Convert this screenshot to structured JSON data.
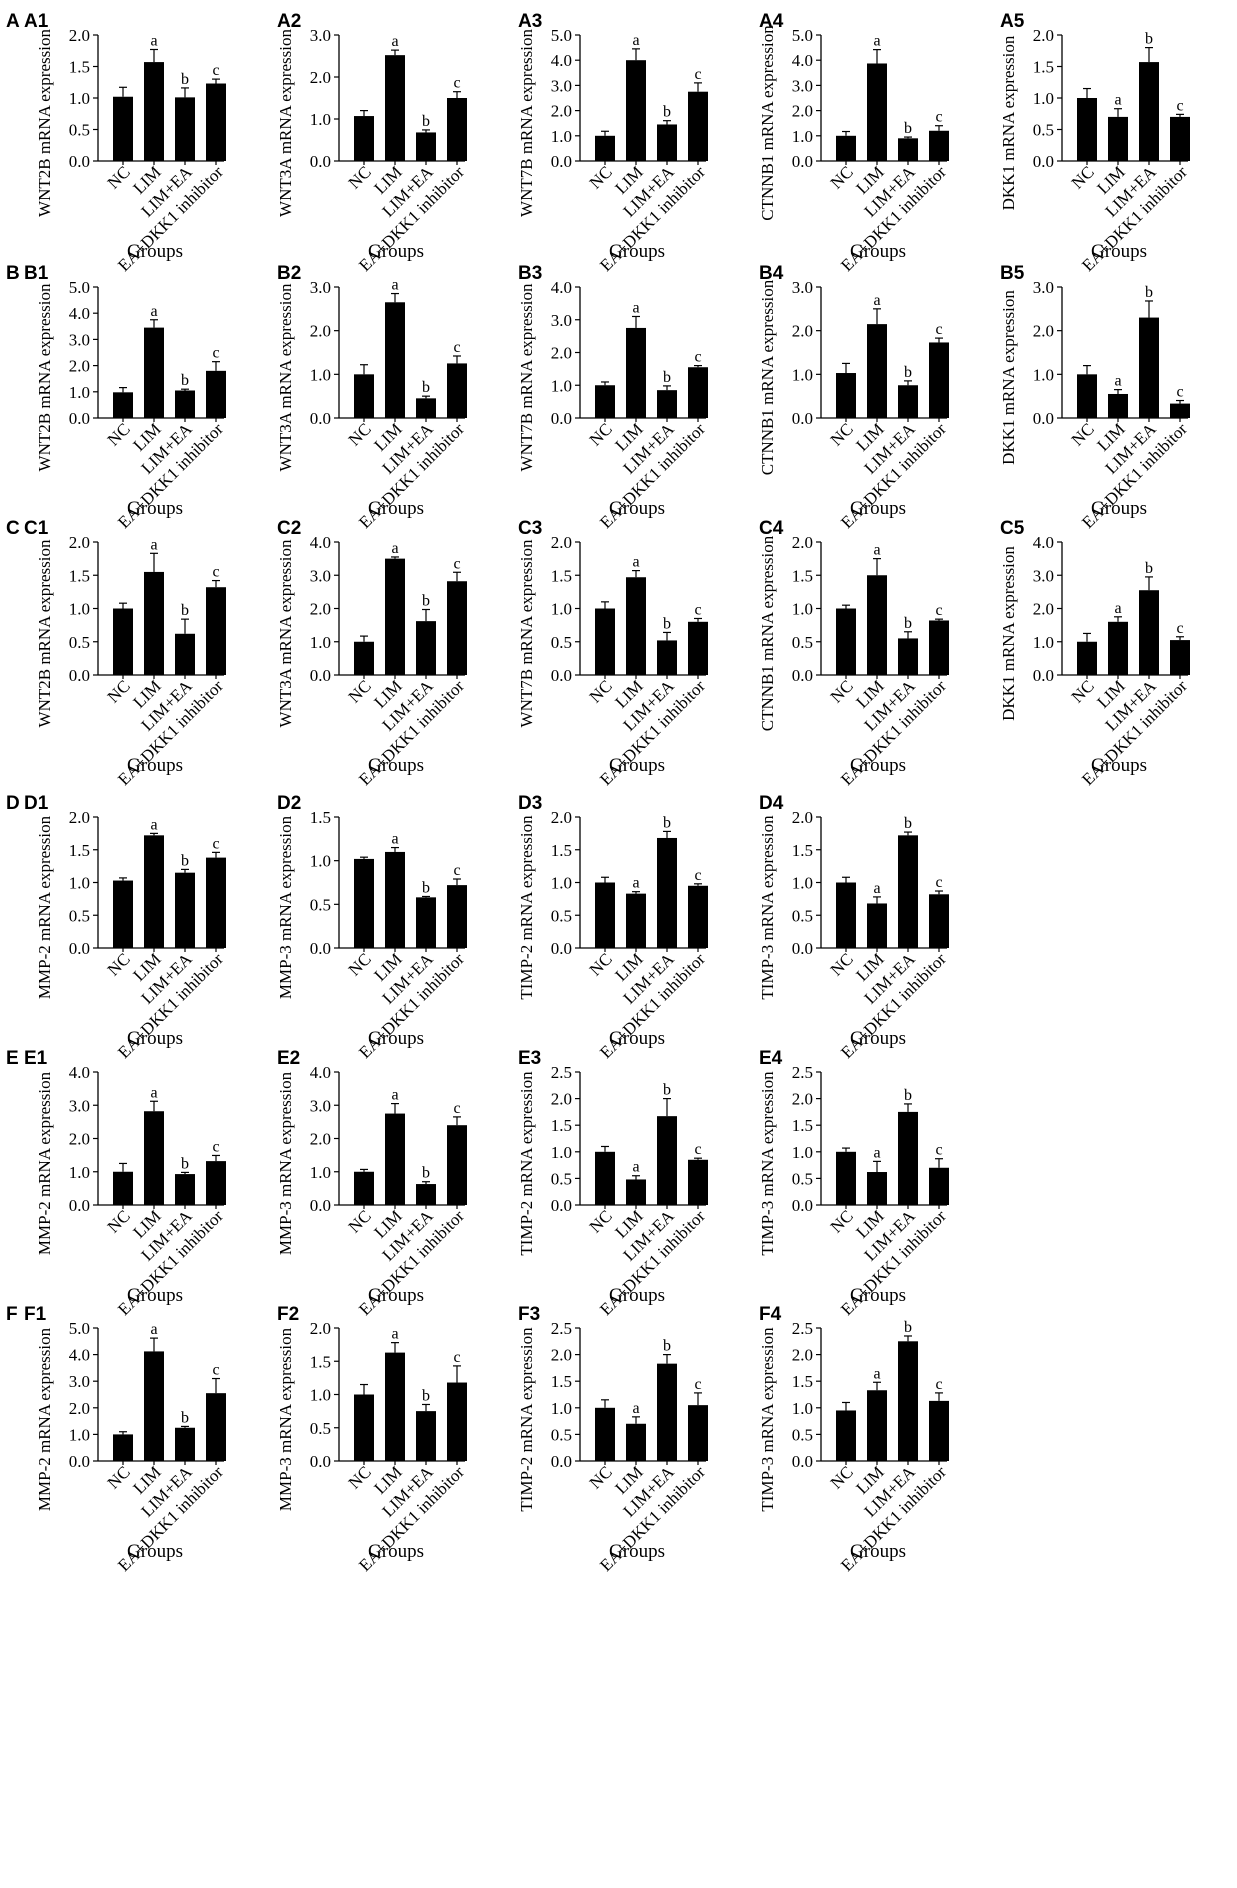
{
  "chart_data": [
    {
      "type": "bar",
      "row_label": "A",
      "panel": "A1",
      "ylabel": "WNT2B mRNA expression",
      "xlabel": "Groups",
      "categories": [
        "NC",
        "LIM",
        "LIM+EA",
        "EA+DKK1 inhibitor"
      ],
      "values": [
        1.02,
        1.57,
        1.01,
        1.23
      ],
      "errors": [
        0.15,
        0.2,
        0.15,
        0.07
      ],
      "letters": [
        "",
        "a",
        "b",
        "c"
      ],
      "ylim": [
        0,
        2
      ],
      "yticks": [
        "0.0",
        "0.5",
        "1.0",
        "1.5",
        "2.0"
      ]
    },
    {
      "type": "bar",
      "panel": "A2",
      "ylabel": "WNT3A mRNA expression",
      "xlabel": "Groups",
      "categories": [
        "NC",
        "LIM",
        "LIM+EA",
        "EA+DKK1 inhibitor"
      ],
      "values": [
        1.07,
        2.52,
        0.68,
        1.5
      ],
      "errors": [
        0.13,
        0.12,
        0.06,
        0.15
      ],
      "letters": [
        "",
        "a",
        "b",
        "c"
      ],
      "ylim": [
        0,
        3
      ],
      "yticks": [
        "0.0",
        "1.0",
        "2.0",
        "3.0"
      ]
    },
    {
      "type": "bar",
      "panel": "A3",
      "ylabel": "WNT7B mRNA expression",
      "xlabel": "Groups",
      "categories": [
        "NC",
        "LIM",
        "LIM+EA",
        "EA+DKK1 inhibitor"
      ],
      "values": [
        1.0,
        4.0,
        1.45,
        2.75
      ],
      "errors": [
        0.18,
        0.45,
        0.15,
        0.35
      ],
      "letters": [
        "",
        "a",
        "b",
        "c"
      ],
      "ylim": [
        0,
        5
      ],
      "yticks": [
        "0.0",
        "1.0",
        "2.0",
        "3.0",
        "4.0",
        "5.0"
      ]
    },
    {
      "type": "bar",
      "panel": "A4",
      "ylabel": "CTNNB1 mRNA expression",
      "xlabel": "Groups",
      "categories": [
        "NC",
        "LIM",
        "LIM+EA",
        "EA+DKK1 inhibitor"
      ],
      "values": [
        1.0,
        3.87,
        0.9,
        1.2
      ],
      "errors": [
        0.17,
        0.55,
        0.05,
        0.2
      ],
      "letters": [
        "",
        "a",
        "b",
        "c"
      ],
      "ylim": [
        0,
        5
      ],
      "yticks": [
        "0.0",
        "1.0",
        "2.0",
        "3.0",
        "4.0",
        "5.0"
      ]
    },
    {
      "type": "bar",
      "panel": "A5",
      "ylabel": "DKK1 mRNA expression",
      "xlabel": "Groups",
      "categories": [
        "NC",
        "LIM",
        "LIM+EA",
        "EA+DKK1 inhibitor"
      ],
      "values": [
        1.0,
        0.7,
        1.57,
        0.7
      ],
      "errors": [
        0.15,
        0.13,
        0.23,
        0.04
      ],
      "letters": [
        "",
        "a",
        "b",
        "c"
      ],
      "ylim": [
        0,
        2
      ],
      "yticks": [
        "0.0",
        "0.5",
        "1.0",
        "1.5",
        "2.0"
      ]
    },
    {
      "type": "bar",
      "row_label": "B",
      "panel": "B1",
      "ylabel": "WNT2B mRNA expression",
      "xlabel": "Groups",
      "categories": [
        "NC",
        "LIM",
        "LIM+EA",
        "EA+DKK1 inhibitor"
      ],
      "values": [
        0.98,
        3.45,
        1.05,
        1.8
      ],
      "errors": [
        0.18,
        0.3,
        0.05,
        0.35
      ],
      "letters": [
        "",
        "a",
        "b",
        "c"
      ],
      "ylim": [
        0,
        5
      ],
      "yticks": [
        "0.0",
        "1.0",
        "2.0",
        "3.0",
        "4.0",
        "5.0"
      ]
    },
    {
      "type": "bar",
      "panel": "B2",
      "ylabel": "WNT3A mRNA expression",
      "xlabel": "Groups",
      "categories": [
        "NC",
        "LIM",
        "LIM+EA",
        "EA+DKK1 inhibitor"
      ],
      "values": [
        1.0,
        2.65,
        0.45,
        1.25
      ],
      "errors": [
        0.22,
        0.2,
        0.05,
        0.17
      ],
      "letters": [
        "",
        "a",
        "b",
        "c"
      ],
      "ylim": [
        0,
        3
      ],
      "yticks": [
        "0.0",
        "1.0",
        "2.0",
        "3.0"
      ]
    },
    {
      "type": "bar",
      "panel": "B3",
      "ylabel": "WNT7B mRNA expression",
      "xlabel": "Groups",
      "categories": [
        "NC",
        "LIM",
        "LIM+EA",
        "EA+DKK1 inhibitor"
      ],
      "values": [
        1.0,
        2.75,
        0.85,
        1.55
      ],
      "errors": [
        0.1,
        0.35,
        0.13,
        0.05
      ],
      "letters": [
        "",
        "a",
        "b",
        "c"
      ],
      "ylim": [
        0,
        4
      ],
      "yticks": [
        "0.0",
        "1.0",
        "2.0",
        "3.0",
        "4.0"
      ]
    },
    {
      "type": "bar",
      "panel": "B4",
      "ylabel": "CTNNB1 mRNA expression",
      "xlabel": "Groups",
      "categories": [
        "NC",
        "LIM",
        "LIM+EA",
        "EA+DKK1 inhibitor"
      ],
      "values": [
        1.03,
        2.15,
        0.75,
        1.73
      ],
      "errors": [
        0.22,
        0.35,
        0.1,
        0.1
      ],
      "letters": [
        "",
        "a",
        "b",
        "c"
      ],
      "ylim": [
        0,
        3
      ],
      "yticks": [
        "0.0",
        "1.0",
        "2.0",
        "3.0"
      ]
    },
    {
      "type": "bar",
      "panel": "B5",
      "ylabel": "DKK1 mRNA expression",
      "xlabel": "Groups",
      "categories": [
        "NC",
        "LIM",
        "LIM+EA",
        "EA+DKK1 inhibitor"
      ],
      "values": [
        1.0,
        0.55,
        2.3,
        0.33
      ],
      "errors": [
        0.2,
        0.1,
        0.38,
        0.07
      ],
      "letters": [
        "",
        "a",
        "b",
        "c"
      ],
      "ylim": [
        0,
        3
      ],
      "yticks": [
        "0.0",
        "1.0",
        "2.0",
        "3.0"
      ]
    },
    {
      "type": "bar",
      "row_label": "C",
      "panel": "C1",
      "ylabel": "WNT2B mRNA expression",
      "xlabel": "Groups",
      "categories": [
        "NC",
        "LIM",
        "LIM+EA",
        "EA+DKK1 inhibitor"
      ],
      "values": [
        1.0,
        1.55,
        0.62,
        1.32
      ],
      "errors": [
        0.08,
        0.28,
        0.22,
        0.1
      ],
      "letters": [
        "",
        "a",
        "b",
        "c"
      ],
      "ylim": [
        0,
        2
      ],
      "yticks": [
        "0.0",
        "0.5",
        "1.0",
        "1.5",
        "2.0"
      ]
    },
    {
      "type": "bar",
      "panel": "C2",
      "ylabel": "WNT3A mRNA expression",
      "xlabel": "Groups",
      "categories": [
        "NC",
        "LIM",
        "LIM+EA",
        "EA+DKK1 inhibitor"
      ],
      "values": [
        1.0,
        3.5,
        1.62,
        2.82
      ],
      "errors": [
        0.17,
        0.05,
        0.35,
        0.27
      ],
      "letters": [
        "",
        "a",
        "b",
        "c"
      ],
      "ylim": [
        0,
        4
      ],
      "yticks": [
        "0.0",
        "1.0",
        "2.0",
        "3.0",
        "4.0"
      ]
    },
    {
      "type": "bar",
      "panel": "C3",
      "ylabel": "WNT7B mRNA expression",
      "xlabel": "Groups",
      "categories": [
        "NC",
        "LIM",
        "LIM+EA",
        "EA+DKK1 inhibitor"
      ],
      "values": [
        1.0,
        1.47,
        0.52,
        0.8
      ],
      "errors": [
        0.1,
        0.1,
        0.12,
        0.05
      ],
      "letters": [
        "",
        "a",
        "b",
        "c"
      ],
      "ylim": [
        0,
        2
      ],
      "yticks": [
        "0.0",
        "0.5",
        "1.0",
        "1.5",
        "2.0"
      ]
    },
    {
      "type": "bar",
      "panel": "C4",
      "ylabel": "CTNNB1 mRNA expression",
      "xlabel": "Groups",
      "categories": [
        "NC",
        "LIM",
        "LIM+EA",
        "EA+DKK1 inhibitor"
      ],
      "values": [
        1.0,
        1.5,
        0.55,
        0.82
      ],
      "errors": [
        0.05,
        0.25,
        0.1,
        0.02
      ],
      "letters": [
        "",
        "a",
        "b",
        "c"
      ],
      "ylim": [
        0,
        2
      ],
      "yticks": [
        "0.0",
        "0.5",
        "1.0",
        "1.5",
        "2.0"
      ]
    },
    {
      "type": "bar",
      "panel": "C5",
      "ylabel": "DKK1 mRNA expression",
      "xlabel": "Groups",
      "categories": [
        "NC",
        "LIM",
        "LIM+EA",
        "EA+DKK1 inhibitor"
      ],
      "values": [
        1.0,
        1.6,
        2.55,
        1.05
      ],
      "errors": [
        0.25,
        0.15,
        0.4,
        0.1
      ],
      "letters": [
        "",
        "a",
        "b",
        "c"
      ],
      "ylim": [
        0,
        4
      ],
      "yticks": [
        "0.0",
        "1.0",
        "2.0",
        "3.0",
        "4.0"
      ]
    },
    {
      "type": "bar",
      "row_label": "D",
      "panel": "D1",
      "ylabel": "MMP-2 mRNA expression",
      "xlabel": "Groups",
      "categories": [
        "NC",
        "LIM",
        "LIM+EA",
        "EA+DKK1 inhibitor"
      ],
      "values": [
        1.03,
        1.72,
        1.15,
        1.38
      ],
      "errors": [
        0.04,
        0.03,
        0.05,
        0.08
      ],
      "letters": [
        "",
        "a",
        "b",
        "c"
      ],
      "ylim": [
        0,
        2
      ],
      "yticks": [
        "0.0",
        "0.5",
        "1.0",
        "1.5",
        "2.0"
      ]
    },
    {
      "type": "bar",
      "panel": "D2",
      "ylabel": "MMP-3 mRNA expression",
      "xlabel": "Groups",
      "categories": [
        "NC",
        "LIM",
        "LIM+EA",
        "EA+DKK1 inhibitor"
      ],
      "values": [
        1.02,
        1.1,
        0.58,
        0.72
      ],
      "errors": [
        0.02,
        0.05,
        0.01,
        0.07
      ],
      "letters": [
        "",
        "a",
        "b",
        "c"
      ],
      "ylim": [
        0,
        1.5
      ],
      "yticks": [
        "0.0",
        "0.5",
        "1.0",
        "1.5"
      ]
    },
    {
      "type": "bar",
      "panel": "D3",
      "ylabel": "TIMP-2 mRNA expression",
      "xlabel": "Groups",
      "categories": [
        "NC",
        "LIM",
        "LIM+EA",
        "EA+DKK1 inhibitor"
      ],
      "values": [
        1.0,
        0.83,
        1.68,
        0.95
      ],
      "errors": [
        0.08,
        0.03,
        0.1,
        0.03
      ],
      "letters": [
        "",
        "a",
        "b",
        "c"
      ],
      "ylim": [
        0,
        2
      ],
      "yticks": [
        "0.0",
        "0.5",
        "1.0",
        "1.5",
        "2.0"
      ]
    },
    {
      "type": "bar",
      "panel": "D4",
      "ylabel": "TIMP-3 mRNA expression",
      "xlabel": "Groups",
      "categories": [
        "NC",
        "LIM",
        "LIM+EA",
        "EA+DKK1 inhibitor"
      ],
      "values": [
        1.0,
        0.68,
        1.72,
        0.82
      ],
      "errors": [
        0.08,
        0.1,
        0.05,
        0.05
      ],
      "letters": [
        "",
        "a",
        "b",
        "c"
      ],
      "ylim": [
        0,
        2
      ],
      "yticks": [
        "0.0",
        "0.5",
        "1.0",
        "1.5",
        "2.0"
      ]
    },
    {
      "type": "bar",
      "row_label": "E",
      "panel": "E1",
      "ylabel": "MMP-2 mRNA expression",
      "xlabel": "Groups",
      "categories": [
        "NC",
        "LIM",
        "LIM+EA",
        "EA+DKK1 inhibitor"
      ],
      "values": [
        1.0,
        2.82,
        0.93,
        1.32
      ],
      "errors": [
        0.25,
        0.3,
        0.05,
        0.17
      ],
      "letters": [
        "",
        "a",
        "b",
        "c"
      ],
      "ylim": [
        0,
        4
      ],
      "yticks": [
        "0.0",
        "1.0",
        "2.0",
        "3.0",
        "4.0"
      ]
    },
    {
      "type": "bar",
      "panel": "E2",
      "ylabel": "MMP-3 mRNA expression",
      "xlabel": "Groups",
      "categories": [
        "NC",
        "LIM",
        "LIM+EA",
        "EA+DKK1 inhibitor"
      ],
      "values": [
        1.0,
        2.75,
        0.63,
        2.4
      ],
      "errors": [
        0.07,
        0.3,
        0.07,
        0.25
      ],
      "letters": [
        "",
        "a",
        "b",
        "c"
      ],
      "ylim": [
        0,
        4
      ],
      "yticks": [
        "0.0",
        "1.0",
        "2.0",
        "3.0",
        "4.0"
      ]
    },
    {
      "type": "bar",
      "panel": "E3",
      "ylabel": "TIMP-2 mRNA expression",
      "xlabel": "Groups",
      "categories": [
        "NC",
        "LIM",
        "LIM+EA",
        "EA+DKK1 inhibitor"
      ],
      "values": [
        1.0,
        0.48,
        1.67,
        0.85
      ],
      "errors": [
        0.1,
        0.07,
        0.33,
        0.03
      ],
      "letters": [
        "",
        "a",
        "b",
        "c"
      ],
      "ylim": [
        0,
        2.5
      ],
      "yticks": [
        "0.0",
        "0.5",
        "1.0",
        "1.5",
        "2.0",
        "2.5"
      ]
    },
    {
      "type": "bar",
      "panel": "E4",
      "ylabel": "TIMP-3 mRNA expression",
      "xlabel": "Groups",
      "categories": [
        "NC",
        "LIM",
        "LIM+EA",
        "EA+DKK1 inhibitor"
      ],
      "values": [
        1.0,
        0.62,
        1.75,
        0.7
      ],
      "errors": [
        0.07,
        0.2,
        0.15,
        0.17
      ],
      "letters": [
        "",
        "a",
        "b",
        "c"
      ],
      "ylim": [
        0,
        2.5
      ],
      "yticks": [
        "0.0",
        "0.5",
        "1.0",
        "1.5",
        "2.0",
        "2.5"
      ]
    },
    {
      "type": "bar",
      "row_label": "F",
      "panel": "F1",
      "ylabel": "MMP-2 mRNA expression",
      "xlabel": "Groups",
      "categories": [
        "NC",
        "LIM",
        "LIM+EA",
        "EA+DKK1 inhibitor"
      ],
      "values": [
        1.0,
        4.12,
        1.25,
        2.55
      ],
      "errors": [
        0.1,
        0.5,
        0.05,
        0.55
      ],
      "letters": [
        "",
        "a",
        "b",
        "c"
      ],
      "ylim": [
        0,
        5
      ],
      "yticks": [
        "0.0",
        "1.0",
        "2.0",
        "3.0",
        "4.0",
        "5.0"
      ]
    },
    {
      "type": "bar",
      "panel": "F2",
      "ylabel": "MMP-3 mRNA expression",
      "xlabel": "Groups",
      "categories": [
        "NC",
        "LIM",
        "LIM+EA",
        "EA+DKK1 inhibitor"
      ],
      "values": [
        1.0,
        1.63,
        0.75,
        1.18
      ],
      "errors": [
        0.15,
        0.15,
        0.1,
        0.25
      ],
      "letters": [
        "",
        "a",
        "b",
        "c"
      ],
      "ylim": [
        0,
        2
      ],
      "yticks": [
        "0.0",
        "0.5",
        "1.0",
        "1.5",
        "2.0"
      ]
    },
    {
      "type": "bar",
      "panel": "F3",
      "ylabel": "TIMP-2 mRNA expression",
      "xlabel": "Groups",
      "categories": [
        "NC",
        "LIM",
        "LIM+EA",
        "EA+DKK1 inhibitor"
      ],
      "values": [
        1.0,
        0.7,
        1.83,
        1.05
      ],
      "errors": [
        0.15,
        0.13,
        0.17,
        0.23
      ],
      "letters": [
        "",
        "a",
        "b",
        "c"
      ],
      "ylim": [
        0,
        2.5
      ],
      "yticks": [
        "0.0",
        "0.5",
        "1.0",
        "1.5",
        "2.0",
        "2.5"
      ]
    },
    {
      "type": "bar",
      "panel": "F4",
      "ylabel": "TIMP-3 mRNA expression",
      "xlabel": "Groups",
      "categories": [
        "NC",
        "LIM",
        "LIM+EA",
        "EA+DKK1 inhibitor"
      ],
      "values": [
        0.95,
        1.33,
        2.25,
        1.13
      ],
      "errors": [
        0.15,
        0.15,
        0.1,
        0.15
      ],
      "letters": [
        "",
        "a",
        "b",
        "c"
      ],
      "ylim": [
        0,
        2.5
      ],
      "yticks": [
        "0.0",
        "0.5",
        "1.0",
        "1.5",
        "2.0",
        "2.5"
      ]
    }
  ]
}
